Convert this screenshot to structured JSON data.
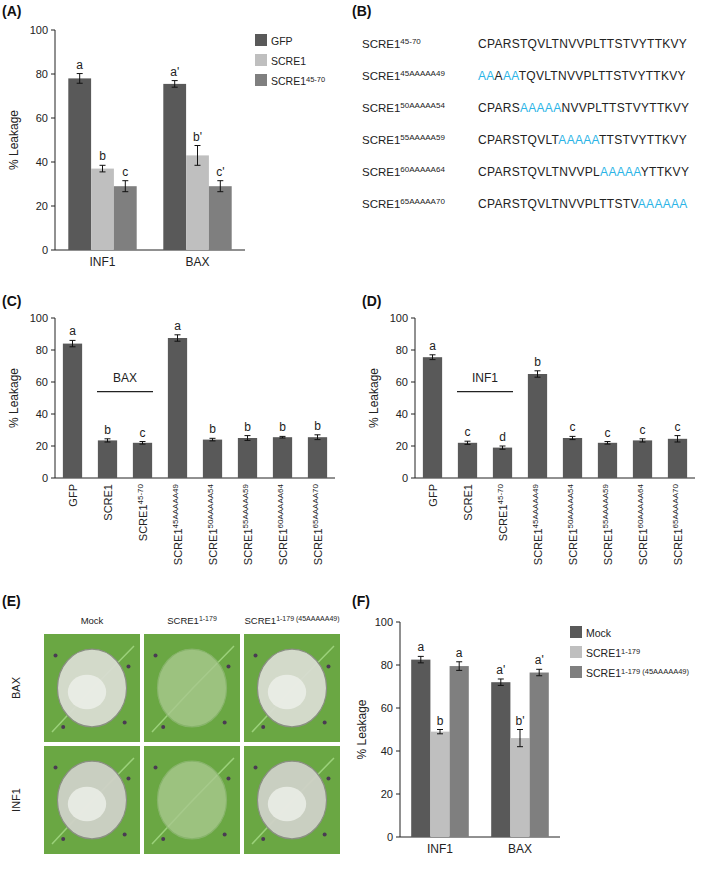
{
  "panel_labels": [
    "(A)",
    "(B)",
    "(C)",
    "(D)",
    "(E)",
    "(F)"
  ],
  "chart_data": [
    {
      "type": "bar",
      "ylabel": "% Leakage",
      "categories": [
        "INF1",
        "BAX"
      ],
      "ylim": [
        0,
        100
      ],
      "yticks": [
        0,
        20,
        40,
        60,
        80,
        100
      ],
      "legend": "right",
      "series": [
        {
          "name": "GFP",
          "color": "#595959",
          "values": [
            78,
            75.5
          ],
          "errors": [
            2.2,
            1.5
          ],
          "letters": [
            "a",
            "a'"
          ]
        },
        {
          "name": "SCRE1",
          "color": "#bfbfbf",
          "values": [
            37,
            43
          ],
          "errors": [
            1.5,
            4.5
          ],
          "letters": [
            "b",
            "b'"
          ]
        },
        {
          "name": "SCRE1 45-70",
          "color": "#7f7f7f",
          "values": [
            29,
            29
          ],
          "errors": [
            2.5,
            2.5
          ],
          "letters": [
            "c",
            "c'"
          ]
        }
      ]
    },
    {
      "type": "bar",
      "ylabel": "% Leakage",
      "annotation": "BAX",
      "annotation_span": [
        "SCRE1",
        "SCRE1 45-70"
      ],
      "categories": [
        "GFP",
        "SCRE1",
        "SCRE1 45-70",
        "SCRE1 45AAAAA49",
        "SCRE1 50AAAAA54",
        "SCRE1 55AAAAA59",
        "SCRE1 60AAAAA64",
        "SCRE1 65AAAAA70"
      ],
      "values": [
        84,
        23.5,
        22,
        87.5,
        24,
        25,
        25.5,
        25.5
      ],
      "errors": [
        2,
        1,
        0.8,
        2,
        0.8,
        1.5,
        0.5,
        1.5
      ],
      "letters": [
        "a",
        "b",
        "c",
        "a",
        "b",
        "b",
        "b",
        "b"
      ],
      "color": "#595959",
      "ylim": [
        0,
        100
      ],
      "yticks": [
        0,
        20,
        40,
        60,
        80,
        100
      ]
    },
    {
      "type": "bar",
      "ylabel": "% Leakage",
      "annotation": "INF1",
      "annotation_span": [
        "SCRE1",
        "SCRE1 45-70"
      ],
      "categories": [
        "GFP",
        "SCRE1",
        "SCRE1 45-70",
        "SCRE1 45AAAAA49",
        "SCRE1 50AAAAA54",
        "SCRE1 55AAAAA59",
        "SCRE1 60AAAAA64",
        "SCRE1 65AAAAA70"
      ],
      "values": [
        75.5,
        22,
        19,
        65,
        25,
        22,
        23.5,
        24.5
      ],
      "errors": [
        1.5,
        1,
        1,
        2,
        1,
        0.8,
        1,
        2
      ],
      "letters": [
        "a",
        "c",
        "d",
        "b",
        "c",
        "c",
        "c",
        "c"
      ],
      "color": "#595959",
      "ylim": [
        0,
        100
      ],
      "yticks": [
        0,
        20,
        40,
        60,
        80,
        100
      ]
    },
    {
      "type": "bar",
      "ylabel": "% Leakage",
      "categories": [
        "INF1",
        "BAX"
      ],
      "ylim": [
        0,
        100
      ],
      "yticks": [
        0,
        20,
        40,
        60,
        80,
        100
      ],
      "legend": "right",
      "series": [
        {
          "name": "Mock",
          "color": "#595959",
          "values": [
            82.5,
            72
          ],
          "errors": [
            1.5,
            1.5
          ],
          "letters": [
            "a",
            "a'"
          ]
        },
        {
          "name": "SCRE1 1-179",
          "color": "#bfbfbf",
          "values": [
            49,
            46
          ],
          "errors": [
            1,
            4
          ],
          "letters": [
            "b",
            "b'"
          ]
        },
        {
          "name": "SCRE1 1-179 (45AAAAA49)",
          "color": "#7f7f7f",
          "values": [
            79.5,
            76.5
          ],
          "errors": [
            2,
            1.5
          ],
          "letters": [
            "a",
            "a'"
          ]
        }
      ]
    }
  ],
  "sequences": [
    {
      "name": "SCRE1 45-70",
      "segments": [
        {
          "text": "CPARSTQVLTNVVPLTTSTVYTTKVY",
          "mutated": false
        }
      ]
    },
    {
      "name": "SCRE1 45AAAAA49",
      "segments": [
        {
          "text": "AA",
          "mutated": true
        },
        {
          "text": "A",
          "mutated": false
        },
        {
          "text": "AA",
          "mutated": true
        },
        {
          "text": "TQVLTNVVPLTTSTVYTTKVY",
          "mutated": false
        }
      ]
    },
    {
      "name": "SCRE1 50AAAAA54",
      "segments": [
        {
          "text": "CPARS",
          "mutated": false
        },
        {
          "text": "AAAAA",
          "mutated": true
        },
        {
          "text": "NVVPLTTSTVYTTKVY",
          "mutated": false
        }
      ]
    },
    {
      "name": "SCRE1 55AAAAA59",
      "segments": [
        {
          "text": "CPARSTQVLT",
          "mutated": false
        },
        {
          "text": "AAAAA",
          "mutated": true
        },
        {
          "text": "TTSTVYTTKVY",
          "mutated": false
        }
      ]
    },
    {
      "name": "SCRE1 60AAAAA64",
      "segments": [
        {
          "text": "CPARSTQVLTNVVPL",
          "mutated": false
        },
        {
          "text": "AAAAA",
          "mutated": true
        },
        {
          "text": "YTTKVY",
          "mutated": false
        }
      ]
    },
    {
      "name": "SCRE1 65AAAAA70",
      "segments": [
        {
          "text": "CPARSTQVLTNVVPLTTSTV",
          "mutated": false
        },
        {
          "text": "AAAAAA",
          "mutated": true
        }
      ]
    }
  ],
  "leaf_panel": {
    "columns": [
      "Mock",
      "SCRE1 1-179",
      "SCRE1 1-179 (45AAAAA49)"
    ],
    "rows": [
      "BAX",
      "INF1"
    ]
  }
}
